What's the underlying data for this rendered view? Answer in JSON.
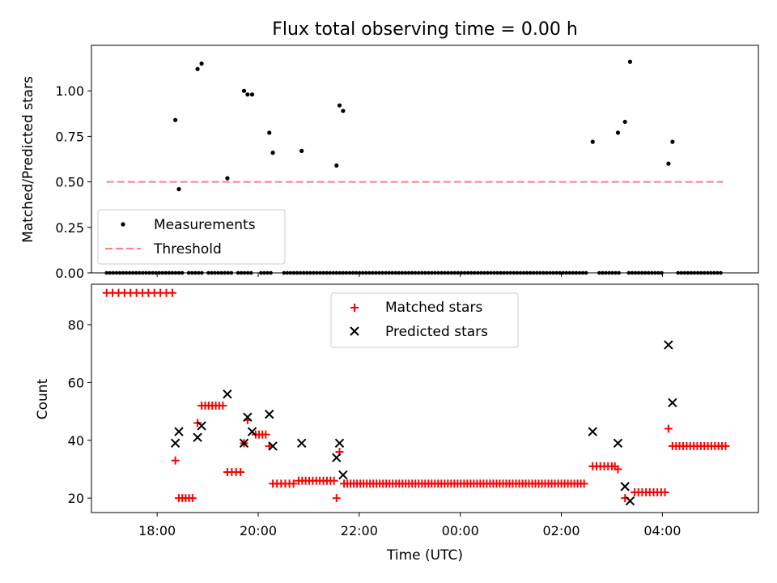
{
  "chart_data": [
    {
      "type": "scatter",
      "title": "Flux total observing time = 0.00 h",
      "xlabel": "",
      "ylabel": "Matched/Predicted stars",
      "xlim": [
        16.7,
        29.9
      ],
      "ylim": [
        0,
        1.25
      ],
      "yticks": [
        0.0,
        0.25,
        0.5,
        0.75,
        1.0
      ],
      "ytick_labels": [
        "0.00",
        "0.25",
        "0.50",
        "0.75",
        "1.00"
      ],
      "legend_position": "lower-left",
      "series": [
        {
          "name": "Measurements",
          "kind": "dots",
          "color": "#000000",
          "points": [
            [
              18.36,
              0.84
            ],
            [
              18.43,
              0.46
            ],
            [
              18.8,
              1.12
            ],
            [
              18.88,
              1.15
            ],
            [
              19.39,
              0.52
            ],
            [
              19.72,
              1.0
            ],
            [
              19.79,
              0.98
            ],
            [
              19.88,
              0.98
            ],
            [
              20.22,
              0.77
            ],
            [
              20.29,
              0.66
            ],
            [
              20.86,
              0.67
            ],
            [
              21.55,
              0.59
            ],
            [
              21.61,
              0.92
            ],
            [
              21.68,
              0.89
            ],
            [
              26.62,
              0.72
            ],
            [
              27.12,
              0.77
            ],
            [
              27.26,
              0.83
            ],
            [
              27.36,
              1.16
            ],
            [
              28.12,
              0.6
            ],
            [
              28.2,
              0.72
            ]
          ],
          "zero_values_range": [
            17.0,
            29.2
          ],
          "zero_value": 0.0
        },
        {
          "name": "Threshold",
          "kind": "dashed-line",
          "color": "#ff7f7f",
          "points": [
            [
              17.0,
              0.5
            ],
            [
              29.2,
              0.5
            ]
          ]
        }
      ]
    },
    {
      "type": "scatter",
      "title": "",
      "xlabel": "Time (UTC)",
      "ylabel": "Count",
      "xlim": [
        16.7,
        29.9
      ],
      "ylim": [
        15,
        94
      ],
      "yticks": [
        20,
        40,
        60,
        80
      ],
      "ytick_labels": [
        "20",
        "40",
        "60",
        "80"
      ],
      "xticks": [
        18,
        20,
        22,
        24,
        26,
        28
      ],
      "xtick_labels": [
        "18:00",
        "20:00",
        "22:00",
        "00:00",
        "02:00",
        "04:00"
      ],
      "legend_position": "upper-center",
      "series": [
        {
          "name": "Matched stars",
          "marker": "plus",
          "color": "#ff0000",
          "segments": [
            {
              "x_from": 17.0,
              "x_to": 18.3,
              "count": 12,
              "y": 91
            },
            {
              "x_from": 18.43,
              "x_to": 18.7,
              "count": 5,
              "y": 20
            },
            {
              "x_from": 18.88,
              "x_to": 19.3,
              "count": 7,
              "y": 52
            },
            {
              "x_from": 19.39,
              "x_to": 19.65,
              "count": 4,
              "y": 29
            },
            {
              "x_from": 19.95,
              "x_to": 20.15,
              "count": 4,
              "y": 42
            },
            {
              "x_from": 20.29,
              "x_to": 20.7,
              "count": 6,
              "y": 25
            },
            {
              "x_from": 20.8,
              "x_to": 21.5,
              "count": 11,
              "y": 26
            },
            {
              "x_from": 21.7,
              "x_to": 26.45,
              "count": 75,
              "y": 25
            },
            {
              "x_from": 26.62,
              "x_to": 27.0,
              "count": 6,
              "y": 31
            },
            {
              "x_from": 27.45,
              "x_to": 28.05,
              "count": 9,
              "y": 22
            },
            {
              "x_from": 28.2,
              "x_to": 29.25,
              "count": 16,
              "y": 38
            }
          ],
          "points": [
            [
              18.36,
              33
            ],
            [
              18.8,
              46
            ],
            [
              19.72,
              39
            ],
            [
              19.79,
              47
            ],
            [
              20.22,
              38
            ],
            [
              21.55,
              20
            ],
            [
              21.61,
              36
            ],
            [
              27.06,
              31
            ],
            [
              27.12,
              30
            ],
            [
              27.26,
              20
            ],
            [
              28.12,
              44
            ]
          ]
        },
        {
          "name": "Predicted stars",
          "marker": "x",
          "color": "#000000",
          "points": [
            [
              18.36,
              39
            ],
            [
              18.43,
              43
            ],
            [
              18.8,
              41
            ],
            [
              18.88,
              45
            ],
            [
              19.39,
              56
            ],
            [
              19.72,
              39
            ],
            [
              19.79,
              48
            ],
            [
              19.88,
              43
            ],
            [
              20.22,
              49
            ],
            [
              20.29,
              38
            ],
            [
              20.86,
              39
            ],
            [
              21.55,
              34
            ],
            [
              21.61,
              39
            ],
            [
              21.68,
              28
            ],
            [
              26.62,
              43
            ],
            [
              27.12,
              39
            ],
            [
              27.26,
              24
            ],
            [
              27.36,
              19
            ],
            [
              28.12,
              73
            ],
            [
              28.2,
              53
            ]
          ]
        }
      ]
    }
  ]
}
